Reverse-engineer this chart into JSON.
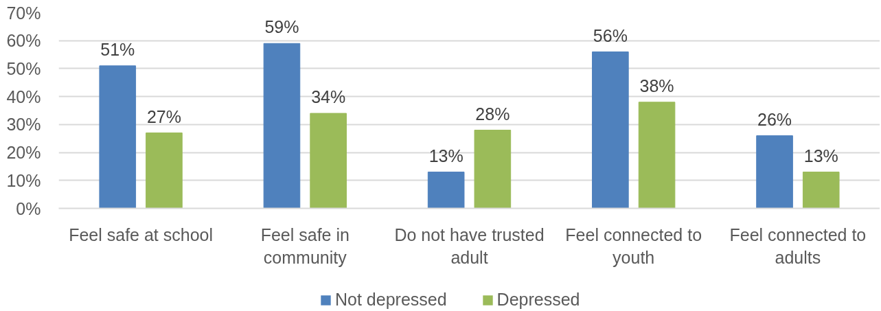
{
  "chart_data": {
    "type": "bar",
    "categories": [
      "Feel safe at school",
      "Feel safe in\ncommunity",
      "Do not have trusted\nadult",
      "Feel connected to\nyouth",
      "Feel connected to\nadults"
    ],
    "series": [
      {
        "name": "Not depressed",
        "color": "#4f81bd",
        "values": [
          51,
          59,
          13,
          56,
          26
        ],
        "value_labels": [
          "51%",
          "59%",
          "13%",
          "56%",
          "26%"
        ]
      },
      {
        "name": "Depressed",
        "color": "#9bbb59",
        "values": [
          27,
          34,
          28,
          38,
          13
        ],
        "value_labels": [
          "27%",
          "34%",
          "28%",
          "38%",
          "13%"
        ]
      }
    ],
    "ylim": [
      0,
      70
    ],
    "yticks": [
      {
        "value": 0,
        "label": "0%"
      },
      {
        "value": 10,
        "label": "10%"
      },
      {
        "value": 20,
        "label": "20%"
      },
      {
        "value": 30,
        "label": "30%"
      },
      {
        "value": 40,
        "label": "40%"
      },
      {
        "value": 50,
        "label": "50%"
      },
      {
        "value": 60,
        "label": "60%"
      },
      {
        "value": 70,
        "label": "70%"
      }
    ],
    "grid": "y",
    "legend": "bottom"
  }
}
